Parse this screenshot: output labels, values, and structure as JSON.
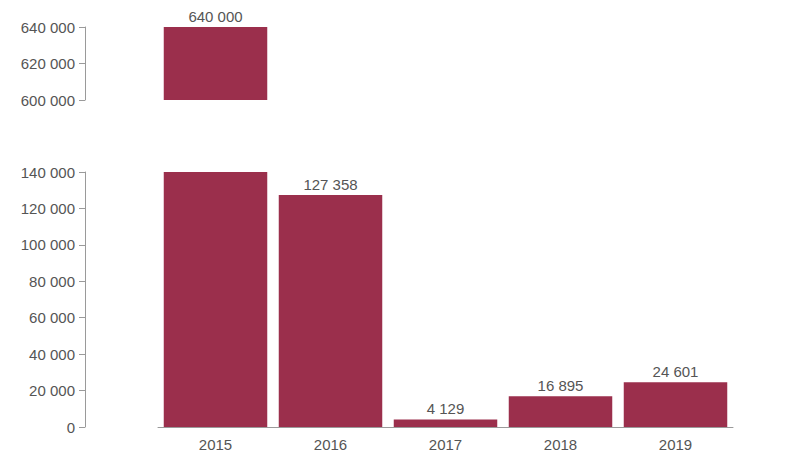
{
  "chart_data": {
    "type": "bar",
    "categories": [
      "2015",
      "2016",
      "2017",
      "2018",
      "2019"
    ],
    "values": [
      640000,
      127358,
      4129,
      16895,
      24601
    ],
    "value_labels": [
      "640 000",
      "127 358",
      "4 129",
      "16 895",
      "24 601"
    ],
    "color": "#9b2f4c",
    "ylim": [
      0,
      640000
    ],
    "yticks": [
      {
        "value": 0,
        "label": "0"
      },
      {
        "value": 20000,
        "label": "20 000"
      },
      {
        "value": 40000,
        "label": "40 000"
      },
      {
        "value": 60000,
        "label": "60 000"
      },
      {
        "value": 80000,
        "label": "80 000"
      },
      {
        "value": 100000,
        "label": "100 000"
      },
      {
        "value": 120000,
        "label": "120 000"
      },
      {
        "value": 140000,
        "label": "140 000"
      },
      {
        "value": 600000,
        "label": "600 000"
      },
      {
        "value": 620000,
        "label": "620 000"
      },
      {
        "value": 640000,
        "label": "640 000"
      }
    ],
    "grid": false,
    "data_labels": true
  }
}
